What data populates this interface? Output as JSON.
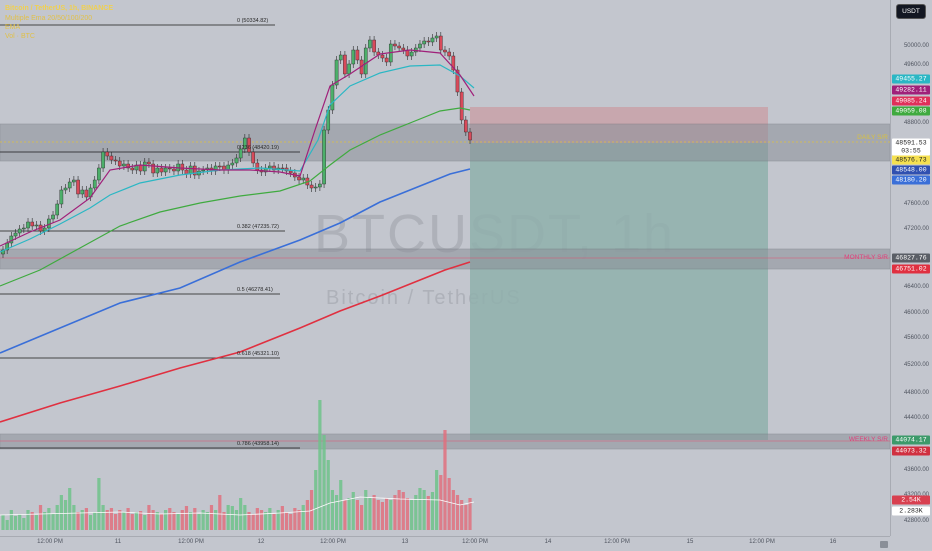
{
  "header": {
    "title": "Bitcoin / TetherUS, 1h, BINANCE",
    "lines": [
      "Multiple Ema 20/50/100/200",
      "EMA",
      "Vol · BTC"
    ]
  },
  "watermark": {
    "symbol": "BTCUSDT, 1h",
    "subtitle": "Bitcoin / TetherUS"
  },
  "currency_button": "USDT",
  "price_scale": {
    "ticks": [
      "50000.00",
      "49600.00",
      "48800.00",
      "48400.00",
      "47600.00",
      "47200.00",
      "46400.00",
      "46000.00",
      "45600.00",
      "45200.00",
      "44800.00",
      "44400.00",
      "43600.00",
      "43200.00",
      "42800.00"
    ],
    "tags": [
      {
        "label": "49455.27",
        "color": "#2ab7c4",
        "dark": false
      },
      {
        "label": "49282.11",
        "color": "#a0207a",
        "dark": false
      },
      {
        "label": "49085.24",
        "color": "#e0305a",
        "dark": false
      },
      {
        "label": "49059.08",
        "color": "#3faa3f",
        "dark": false
      },
      {
        "label": "48591.53",
        "color": "#ffffff",
        "dark": true
      },
      {
        "label": "03:55",
        "color": "#ffffff",
        "dark": true
      },
      {
        "label": "48576.73",
        "color": "#f5e050",
        "dark": true
      },
      {
        "label": "48548.00",
        "color": "#3050b0",
        "dark": false
      },
      {
        "label": "48180.20",
        "color": "#3a6fd8",
        "dark": false
      },
      {
        "label": "46827.76",
        "color": "#5a5e66",
        "dark": false
      },
      {
        "label": "46751.02",
        "color": "#e03040",
        "dark": false
      },
      {
        "label": "44074.17",
        "color": "#3c9a6a",
        "dark": false
      },
      {
        "label": "44073.32",
        "color": "#d03040",
        "dark": false
      },
      {
        "label": "2.54K",
        "color": "#d84050",
        "dark": false
      },
      {
        "label": "2.283K",
        "color": "#ffffff",
        "dark": true
      }
    ]
  },
  "fib_levels": [
    {
      "label": "0 (50334.82)"
    },
    {
      "label": "0.236 (48420.19)"
    },
    {
      "label": "0.382 (47235.72)"
    },
    {
      "label": "0.5 (46278.41)"
    },
    {
      "label": "0.618 (45321.10)"
    },
    {
      "label": "0.786 (43958.14)"
    }
  ],
  "sr_labels": {
    "daily": "DAILY S/R",
    "monthly": "MONTHLY S/R",
    "weekly": "WEEKLY S/R"
  },
  "time_axis": [
    "12:00 PM",
    "11",
    "12:00 PM",
    "12",
    "12:00 PM",
    "13",
    "12:00 PM",
    "14",
    "12:00 PM",
    "15",
    "12:00 PM",
    "16"
  ],
  "colors": {
    "up": "#4caf6a",
    "down": "#d84a5a",
    "ema20": "#a0207a",
    "ema50": "#2ab7c4",
    "ema100": "#3faa3f",
    "ema200": "#e03040",
    "ema_long": "#3a6fd8",
    "target_zone": "#8fb0ab",
    "stop_zone": "#c9a1a8",
    "sr_band": "#8c9099"
  }
}
